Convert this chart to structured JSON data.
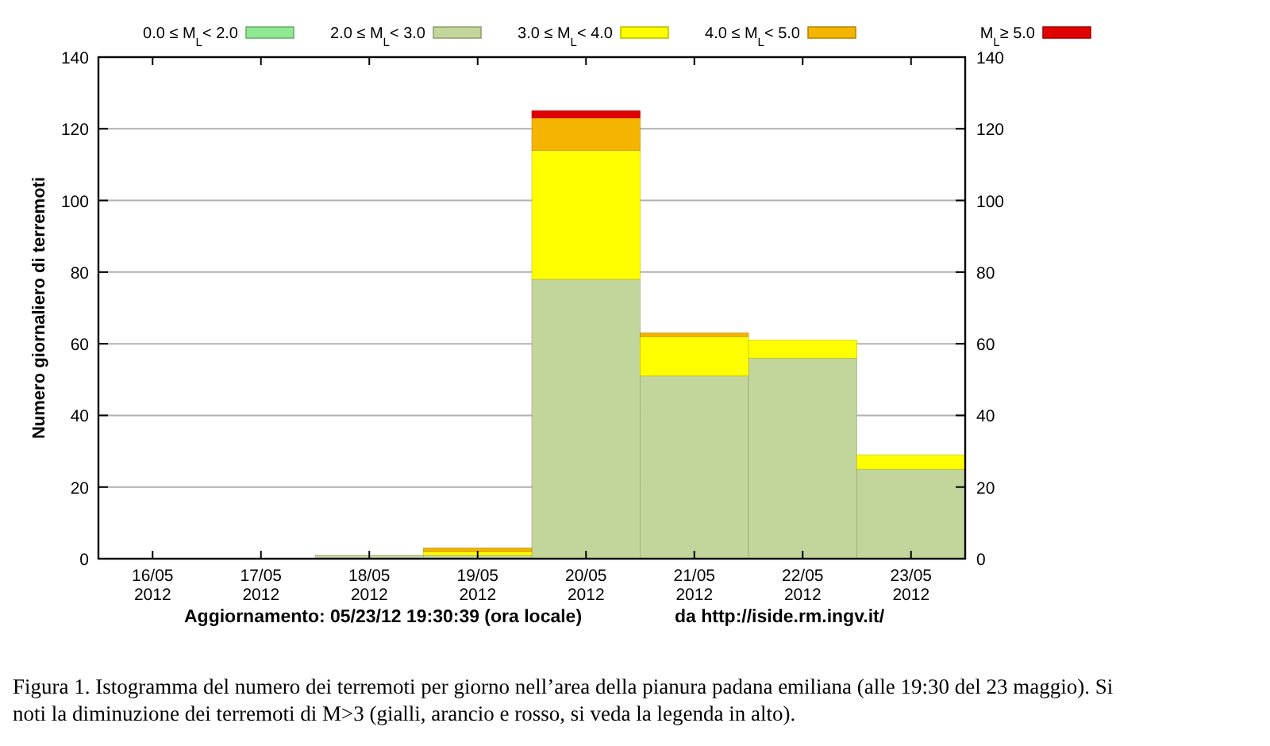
{
  "chart_data": {
    "type": "bar",
    "stacked": true,
    "ylabel": "Numero giornaliero di terremoti",
    "categories": [
      "16/05\n2012",
      "17/05\n2012",
      "18/05\n2012",
      "19/05\n2012",
      "20/05\n2012",
      "21/05\n2012",
      "22/05\n2012",
      "23/05\n2012"
    ],
    "series": [
      {
        "name": "0.0 ≤ M$_{L}$< 2.0",
        "color": "#90e890",
        "values": [
          0,
          0,
          0,
          0,
          0,
          0,
          0,
          0
        ]
      },
      {
        "name": "2.0 ≤ M$_{L}$< 3.0",
        "color": "#c2d69b",
        "values": [
          0,
          0,
          1,
          1,
          78,
          51,
          56,
          25
        ]
      },
      {
        "name": "3.0 ≤ M$_{L}$< 4.0",
        "color": "#ffff00",
        "values": [
          0,
          0,
          0,
          1,
          36,
          11,
          5,
          4
        ]
      },
      {
        "name": "4.0 ≤ M$_{L}$< 5.0",
        "color": "#f5b400",
        "values": [
          0,
          0,
          0,
          1,
          9,
          1,
          0,
          0
        ]
      },
      {
        "name": "M$_{L}$≥ 5.0",
        "color": "#e00000",
        "values": [
          0,
          0,
          0,
          0,
          2,
          0,
          0,
          0
        ]
      }
    ],
    "ylim": [
      0,
      140
    ],
    "yticks": [
      0,
      20,
      40,
      60,
      80,
      100,
      120,
      140
    ],
    "y2lim": [
      0,
      140
    ],
    "y2ticks": [
      0,
      20,
      40,
      60,
      80,
      100,
      120,
      140
    ],
    "grid": "y",
    "legend": "top",
    "annotations": [
      "Aggiornamento: 05/23/12 19:30:39 (ora locale)",
      "da http://iside.rm.ingv.it/",
      "Figura 1. Istogramma del numero dei terremoti per giorno nell’area della pianura padana emiliana (alle 19:30 del 23 maggio). Si noti la diminuzione dei terremoti di M>3 (gialli, arancio e rosso, si veda la legenda in alto)."
    ]
  }
}
